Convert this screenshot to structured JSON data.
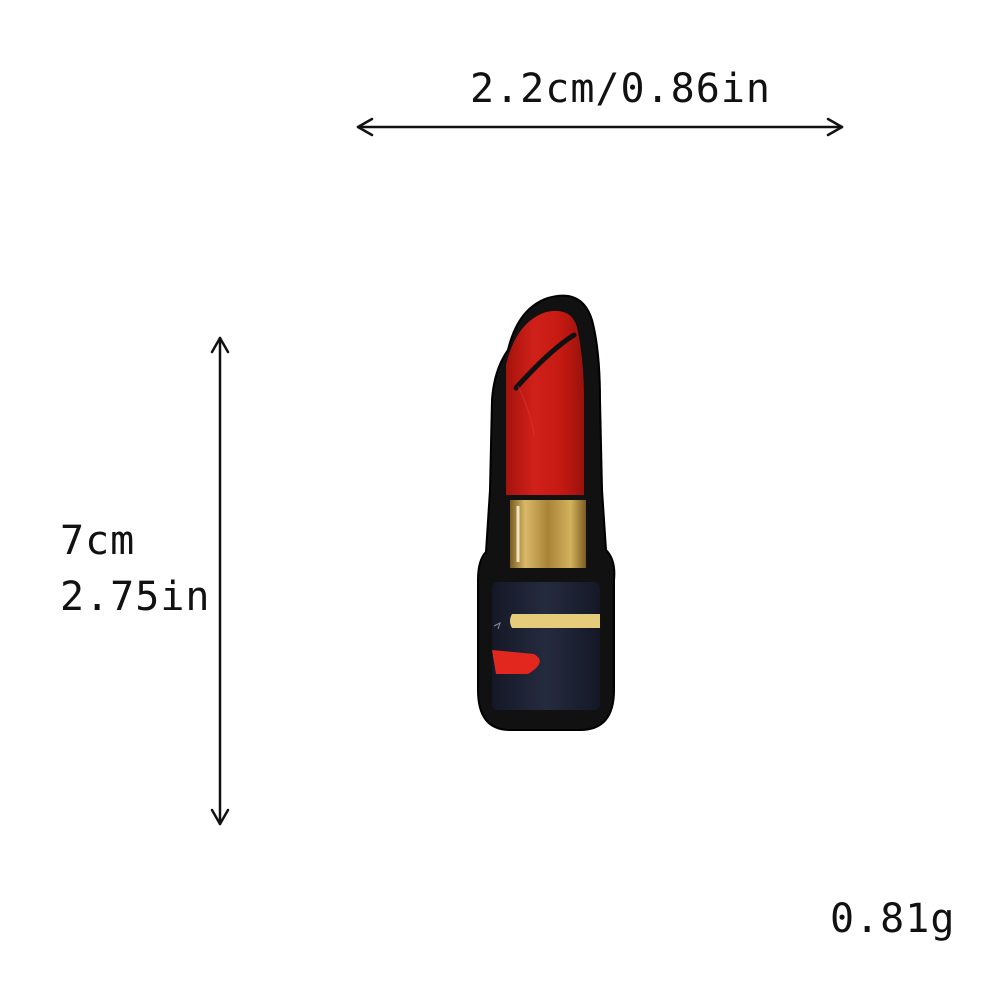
{
  "dimensions": {
    "width_label": "2.2cm/0.86in",
    "height_cm": "7cm",
    "height_in": "2.75in",
    "weight": "0.81g"
  },
  "product": {
    "name_icon": "lipstick-patch-icon",
    "colors": {
      "border": "#111111",
      "bullet": "#c81a10",
      "bullet_highlight": "#e23a2a",
      "gold_band": "#b8923a",
      "gold_light": "#e4cc7a",
      "tube": "#1d2233",
      "lips": "#e2281e"
    }
  }
}
